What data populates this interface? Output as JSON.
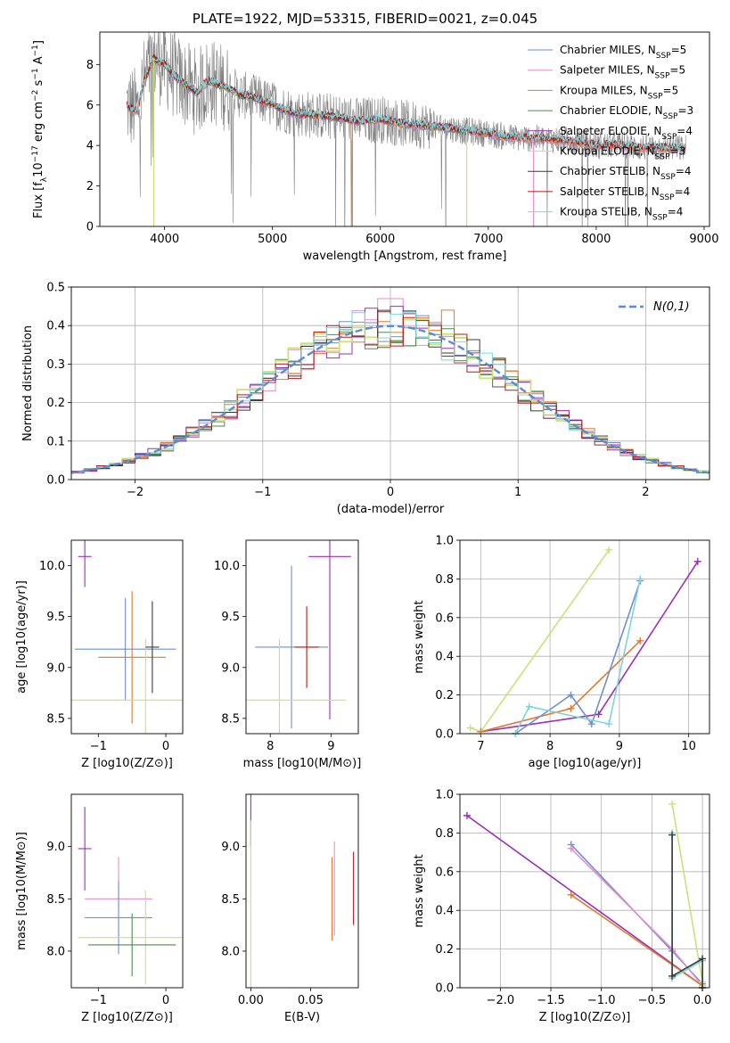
{
  "title": "PLATE=1922, MJD=53315, FIBERID=0021, z=0.045",
  "colors": {
    "Chabrier MILES": "#6f8fcf",
    "Salpeter MILES": "#e58fc9",
    "Kroupa MILES": "#e07a30",
    "Chabrier ELODIE": "#4f8a4f",
    "Salpeter ELODIE": "#9b2fb5",
    "Kroupa ELODIE": "#c9e27a",
    "Chabrier STELIB": "#3a3a3a",
    "Salpeter STELIB": "#b51a1a",
    "Kroupa STELIB": "#7fd4dc",
    "data": "#7f7f7f",
    "normal": "#5b8bd6"
  },
  "chart_data": [
    {
      "id": "spectrum",
      "type": "line",
      "xlabel": "wavelength [Angstrom, rest frame]",
      "ylabel": "Flux [f_λ 10⁻¹⁷ erg cm⁻² s⁻¹ A⁻¹]",
      "xlim": [
        3400,
        9050
      ],
      "ylim": [
        0,
        9.6
      ],
      "xticks": [
        4000,
        5000,
        6000,
        7000,
        8000,
        9000
      ],
      "yticks": [
        0,
        2,
        4,
        6,
        8
      ],
      "grid": false,
      "legend_position": "top-right",
      "legend": [
        {
          "name": "Chabrier MILES",
          "sub": "SSP",
          "n": "5"
        },
        {
          "name": "Salpeter MILES",
          "sub": "SSP",
          "n": "5"
        },
        {
          "name": "Kroupa MILES",
          "sub": "SSP",
          "n": "5"
        },
        {
          "name": "Chabrier ELODIE",
          "sub": "SSP",
          "n": "3"
        },
        {
          "name": "Salpeter ELODIE",
          "sub": "SSP",
          "n": "4"
        },
        {
          "name": "Kroupa ELODIE",
          "sub": "SSP",
          "n": "3"
        },
        {
          "name": "Chabrier STELIB",
          "sub": "SSP",
          "n": "4"
        },
        {
          "name": "Salpeter STELIB",
          "sub": "SSP",
          "n": "4"
        },
        {
          "name": "Kroupa STELIB",
          "sub": "SSP",
          "n": "4"
        }
      ],
      "model_continuum": {
        "x": [
          3650,
          3700,
          3750,
          3800,
          3900,
          4000,
          4100,
          4200,
          4300,
          4400,
          4500,
          4600,
          4700,
          4800,
          5000,
          5200,
          5400,
          5600,
          5800,
          6000,
          6200,
          6400,
          6600,
          6800,
          7000,
          7200,
          7400,
          7600,
          7800,
          8000,
          8200,
          8400,
          8600,
          8800
        ],
        "y": [
          6.0,
          5.8,
          5.7,
          7.0,
          8.3,
          8.0,
          7.4,
          7.0,
          6.6,
          7.2,
          7.0,
          6.8,
          6.5,
          6.4,
          6.0,
          5.6,
          5.5,
          5.4,
          5.2,
          5.3,
          5.1,
          5.0,
          4.9,
          4.7,
          4.6,
          4.4,
          4.35,
          4.3,
          4.2,
          4.0,
          4.05,
          3.9,
          3.9,
          3.85
        ]
      }
    },
    {
      "id": "residuals",
      "type": "histogram",
      "xlabel": "(data-model)/error",
      "ylabel": "Normed distribution",
      "xlim": [
        -2.5,
        2.5
      ],
      "ylim": [
        0,
        0.5
      ],
      "xticks": [
        -2,
        -1,
        0,
        1,
        2
      ],
      "yticks": [
        0.0,
        0.1,
        0.2,
        0.3,
        0.4,
        0.5
      ],
      "grid": true,
      "legend_position": "top-right",
      "legend_label": "N(0,1)",
      "bin_width": 0.1,
      "reference_curve": "normal(0,1)"
    },
    {
      "id": "age-z",
      "type": "errorbar",
      "xlabel": "Z [log10(Z/Z⊙)]",
      "ylabel": "age [log10(age/yr)]",
      "xlim": [
        -1.4,
        0.25
      ],
      "ylim": [
        8.35,
        10.25
      ],
      "xticks": [
        -1,
        0
      ],
      "yticks": [
        8.5,
        9.0,
        9.5,
        10.0
      ],
      "series": [
        {
          "name": "Salpeter ELODIE",
          "points": [
            {
              "x": -1.2,
              "y": 10.09,
              "xerr": 0.1,
              "yerr": 0.3
            }
          ]
        },
        {
          "name": "Kroupa MILES",
          "points": [
            {
              "x": -0.5,
              "y": 9.1,
              "xerr": 0.5,
              "yerr": 0.65
            }
          ]
        },
        {
          "name": "Chabrier MILES",
          "points": [
            {
              "x": -0.6,
              "y": 9.18,
              "xerr": 0.75,
              "yerr": 0.5
            }
          ]
        },
        {
          "name": "Kroupa ELODIE",
          "points": [
            {
              "x": -0.3,
              "y": 8.68,
              "xerr": 1.15,
              "yerr": 0.6
            }
          ]
        },
        {
          "name": "Chabrier STELIB",
          "points": [
            {
              "x": -0.2,
              "y": 9.2,
              "xerr": 0.1,
              "yerr": 0.45
            }
          ]
        }
      ]
    },
    {
      "id": "age-mass",
      "type": "errorbar",
      "xlabel": "mass [log10(M/M⊙)]",
      "ylabel": "",
      "xlim": [
        7.6,
        9.45
      ],
      "ylim": [
        8.35,
        10.25
      ],
      "xticks": [
        8,
        9
      ],
      "yticks": [
        8.5,
        9.0,
        9.5,
        10.0
      ],
      "series": [
        {
          "name": "Salpeter ELODIE",
          "points": [
            {
              "x": 8.98,
              "y": 10.09,
              "xerr": 0.35,
              "yerr": 1.6
            }
          ]
        },
        {
          "name": "Chabrier MILES",
          "points": [
            {
              "x": 8.35,
              "y": 9.2,
              "xerr": 0.6,
              "yerr": 0.8
            }
          ]
        },
        {
          "name": "Kroupa ELODIE",
          "points": [
            {
              "x": 8.15,
              "y": 8.68,
              "xerr": 1.1,
              "yerr": 0.6
            }
          ]
        },
        {
          "name": "Salpeter STELIB",
          "points": [
            {
              "x": 8.6,
              "y": 9.2,
              "xerr": 0.2,
              "yerr": 0.4
            }
          ]
        }
      ]
    },
    {
      "id": "weight-age",
      "type": "line",
      "xlabel": "age [log10(age/yr)]",
      "ylabel": "mass weight",
      "xlim": [
        6.7,
        10.3
      ],
      "ylim": [
        0,
        1.0
      ],
      "xticks": [
        7,
        8,
        9,
        10
      ],
      "yticks": [
        0.0,
        0.2,
        0.4,
        0.6,
        0.8,
        1.0
      ],
      "grid": true,
      "series": [
        {
          "name": "Salpeter ELODIE",
          "x": [
            7.0,
            8.7,
            10.13
          ],
          "y": [
            0.01,
            0.1,
            0.89
          ]
        },
        {
          "name": "Kroupa ELODIE",
          "x": [
            6.85,
            7.0,
            8.85
          ],
          "y": [
            0.03,
            0.01,
            0.95
          ]
        },
        {
          "name": "Kroupa MILES",
          "x": [
            7.0,
            8.3,
            9.3
          ],
          "y": [
            0.01,
            0.13,
            0.48
          ]
        },
        {
          "name": "Chabrier MILES",
          "x": [
            7.5,
            8.3,
            8.6,
            9.3
          ],
          "y": [
            0.0,
            0.2,
            0.05,
            0.79
          ]
        },
        {
          "name": "Kroupa STELIB",
          "x": [
            7.5,
            7.7,
            8.85,
            9.3
          ],
          "y": [
            0.0,
            0.14,
            0.05,
            0.8
          ]
        }
      ]
    },
    {
      "id": "mass-z",
      "type": "errorbar",
      "xlabel": "Z [log10(Z/Z⊙)]",
      "ylabel": "mass [log10(M/M⊙)]",
      "xlim": [
        -1.4,
        0.25
      ],
      "ylim": [
        7.65,
        9.5
      ],
      "xticks": [
        -1,
        0
      ],
      "yticks": [
        8.0,
        8.5,
        9.0
      ],
      "series": [
        {
          "name": "Salpeter ELODIE",
          "points": [
            {
              "x": -1.2,
              "y": 8.98,
              "xerr": 0.1,
              "yerr": 0.4
            }
          ]
        },
        {
          "name": "Salpeter MILES",
          "points": [
            {
              "x": -0.7,
              "y": 8.5,
              "xerr": 0.5,
              "yerr": 0.4
            }
          ]
        },
        {
          "name": "Chabrier MILES",
          "points": [
            {
              "x": -0.7,
              "y": 8.32,
              "xerr": 0.5,
              "yerr": 0.35
            }
          ]
        },
        {
          "name": "Kroupa ELODIE",
          "points": [
            {
              "x": -0.3,
              "y": 8.13,
              "xerr": 1.0,
              "yerr": 0.45
            }
          ]
        },
        {
          "name": "Chabrier ELODIE",
          "points": [
            {
              "x": -0.5,
              "y": 8.06,
              "xerr": 0.65,
              "yerr": 0.3
            }
          ]
        }
      ]
    },
    {
      "id": "mass-ebv",
      "type": "errorbar",
      "xlabel": "E(B-V)",
      "ylabel": "",
      "xlim": [
        -0.004,
        0.09
      ],
      "ylim": [
        7.65,
        9.5
      ],
      "xticks": [
        0.0,
        0.05
      ],
      "yticks": [
        8.0,
        8.5,
        9.0
      ],
      "series": [
        {
          "name": "Salpeter ELODIE",
          "points": [
            {
              "x": 0.0,
              "y": 9.25,
              "xerr": 0.0,
              "yerr": 0.25
            }
          ]
        },
        {
          "name": "Kroupa ELODIE",
          "points": [
            {
              "x": 0.0,
              "y": 8.4,
              "xerr": 0.0,
              "yerr": 0.85
            }
          ]
        },
        {
          "name": "Kroupa MILES",
          "points": [
            {
              "x": 0.068,
              "y": 8.5,
              "xerr": 0.0,
              "yerr": 0.4
            }
          ]
        },
        {
          "name": "Salpeter MILES",
          "points": [
            {
              "x": 0.07,
              "y": 8.6,
              "xerr": 0.0,
              "yerr": 0.45
            }
          ]
        },
        {
          "name": "Salpeter STELIB",
          "points": [
            {
              "x": 0.086,
              "y": 8.6,
              "xerr": 0.0,
              "yerr": 0.35
            }
          ]
        }
      ]
    },
    {
      "id": "weight-z",
      "type": "line",
      "xlabel": "Z [log10(Z/Z⊙)]",
      "ylabel": "mass weight",
      "xlim": [
        -2.4,
        0.07
      ],
      "ylim": [
        0,
        1.0
      ],
      "xticks": [
        -2.0,
        -1.5,
        -1.0,
        -0.5,
        0.0
      ],
      "yticks": [
        0.0,
        0.2,
        0.4,
        0.6,
        0.8,
        1.0
      ],
      "grid": true,
      "series": [
        {
          "name": "Salpeter ELODIE",
          "x": [
            -2.33,
            0.0
          ],
          "y": [
            0.89,
            0.01
          ]
        },
        {
          "name": "Chabrier MILES",
          "x": [
            -1.3,
            -0.3,
            0.0
          ],
          "y": [
            0.74,
            0.19,
            0.02
          ]
        },
        {
          "name": "Salpeter MILES",
          "x": [
            -1.3,
            -0.3,
            0.0
          ],
          "y": [
            0.72,
            0.2,
            0.01
          ]
        },
        {
          "name": "Kroupa MILES",
          "x": [
            -1.3,
            0.0
          ],
          "y": [
            0.48,
            0.01
          ]
        },
        {
          "name": "Kroupa ELODIE",
          "x": [
            -0.3,
            0.0,
            0.0
          ],
          "y": [
            0.95,
            0.03,
            0.01
          ]
        },
        {
          "name": "Kroupa STELIB",
          "x": [
            -0.3,
            -0.3,
            0.0,
            0.0
          ],
          "y": [
            0.8,
            0.05,
            0.14,
            0.0
          ]
        },
        {
          "name": "Chabrier STELIB",
          "x": [
            -0.3,
            -0.3,
            0.0,
            0.0
          ],
          "y": [
            0.79,
            0.06,
            0.15,
            0.0
          ]
        }
      ]
    }
  ]
}
